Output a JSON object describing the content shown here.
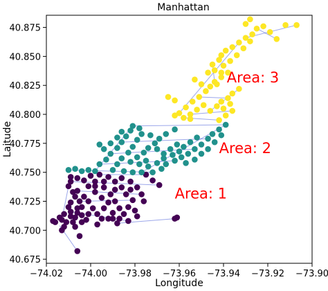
{
  "chart_data": {
    "type": "scatter",
    "title": "Manhattan",
    "xlabel": "Longitude",
    "ylabel": "Laitude",
    "xlim": [
      -74.02,
      -73.9
    ],
    "ylim": [
      40.6715,
      40.8855
    ],
    "x_ticks": [
      -74.02,
      -74.0,
      -73.98,
      -73.96,
      -73.94,
      -73.92,
      -73.9
    ],
    "x_tick_labels": [
      "−74.02",
      "−74.00",
      "−73.98",
      "−73.96",
      "−73.94",
      "−73.92",
      "−73.90"
    ],
    "y_ticks": [
      40.675,
      40.7,
      40.725,
      40.75,
      40.775,
      40.8,
      40.825,
      40.85,
      40.875
    ],
    "y_tick_labels": [
      "40.675",
      "40.700",
      "40.725",
      "40.750",
      "40.775",
      "40.800",
      "40.825",
      "40.850",
      "40.875"
    ],
    "grid": false,
    "edge_color": "#4a5fd8",
    "clusters": [
      {
        "label": "Area: 1",
        "color": "#440154",
        "label_x": -73.962,
        "label_y": 40.7275,
        "points": [
          [
            -74.013,
            40.709
          ],
          [
            -74.011,
            40.707
          ],
          [
            -74.016,
            40.707
          ],
          [
            -74.012,
            40.703
          ],
          [
            -74.008,
            40.707
          ],
          [
            -74.007,
            40.703
          ],
          [
            -74.009,
            40.712
          ],
          [
            -74.012,
            40.714
          ],
          [
            -74.009,
            40.716
          ],
          [
            -74.007,
            40.711
          ],
          [
            -74.004,
            40.707
          ],
          [
            -74.006,
            40.715
          ],
          [
            -74.01,
            40.72
          ],
          [
            -74.009,
            40.724
          ],
          [
            -74.006,
            40.719
          ],
          [
            -74.004,
            40.713
          ],
          [
            -74.002,
            40.709
          ],
          [
            -74.001,
            40.714
          ],
          [
            -74.004,
            40.72
          ],
          [
            -74.005,
            40.725
          ],
          [
            -74.007,
            40.729
          ],
          [
            -74.008,
            40.733
          ],
          [
            -74.01,
            40.738
          ],
          [
            -74.009,
            40.742
          ],
          [
            -74.006,
            40.734
          ],
          [
            -74.003,
            40.729
          ],
          [
            -74.001,
            40.725
          ],
          [
            -73.999,
            40.719
          ],
          [
            -73.997,
            40.714
          ],
          [
            -73.995,
            40.71
          ],
          [
            -73.997,
            40.705
          ],
          [
            -73.994,
            40.719
          ],
          [
            -73.992,
            40.724
          ],
          [
            -73.995,
            40.728
          ],
          [
            -73.998,
            40.733
          ],
          [
            -74.001,
            40.738
          ],
          [
            -74.003,
            40.743
          ],
          [
            -73.998,
            40.742
          ],
          [
            -73.994,
            40.737
          ],
          [
            -73.991,
            40.731
          ],
          [
            -73.989,
            40.725
          ],
          [
            -73.987,
            40.719
          ],
          [
            -73.985,
            40.714
          ],
          [
            -73.983,
            40.72
          ],
          [
            -73.981,
            40.726
          ],
          [
            -73.984,
            40.731
          ],
          [
            -73.986,
            40.737
          ],
          [
            -73.989,
            40.742
          ],
          [
            -73.992,
            40.746
          ],
          [
            -73.996,
            40.748
          ],
          [
            -74.0,
            40.747
          ],
          [
            -74.006,
            40.745
          ],
          [
            -74.009,
            40.746
          ],
          [
            -73.986,
            40.745
          ],
          [
            -73.982,
            40.742
          ],
          [
            -73.979,
            40.737
          ],
          [
            -73.977,
            40.731
          ],
          [
            -73.976,
            40.725
          ],
          [
            -73.98,
            40.717
          ],
          [
            -73.979,
            40.712
          ],
          [
            -73.983,
            40.708
          ],
          [
            -73.988,
            40.706
          ],
          [
            -73.992,
            40.71
          ],
          [
            -73.99,
            40.715
          ],
          [
            -73.975,
            40.748
          ],
          [
            -73.972,
            40.743
          ],
          [
            -73.969,
            40.739
          ],
          [
            -73.987,
            40.71
          ],
          [
            -74.005,
            40.695
          ],
          [
            -74.013,
            40.7
          ],
          [
            -74.006,
            40.682
          ],
          [
            -73.99,
            40.71
          ],
          [
            -73.961,
            40.711
          ],
          [
            -73.962,
            40.71
          ],
          [
            -74.017,
            40.708
          ],
          [
            -74.014,
            40.711
          ],
          [
            -73.998,
            40.738
          ],
          [
            -73.994,
            40.742
          ],
          [
            -73.989,
            40.735
          ],
          [
            -73.982,
            40.735
          ]
        ],
        "edges": [
          [
            [
              -74.014,
              40.704
            ],
            [
              -74.006,
              40.682
            ]
          ],
          [
            [
              -73.988,
              40.706
            ],
            [
              -73.962,
              40.71
            ]
          ],
          [
            [
              -74.009,
              40.742
            ],
            [
              -73.969,
              40.739
            ]
          ],
          [
            [
              -74.006,
              40.734
            ],
            [
              -73.977,
              40.731
            ]
          ],
          [
            [
              -74.005,
              40.725
            ],
            [
              -73.981,
              40.726
            ]
          ],
          [
            [
              -74.009,
              40.716
            ],
            [
              -73.983,
              40.708
            ]
          ],
          [
            [
              -74.01,
              40.738
            ],
            [
              -74.013,
              40.709
            ]
          ],
          [
            [
              -73.996,
              40.748
            ],
            [
              -73.975,
              40.748
            ]
          ]
        ]
      },
      {
        "label": "Area: 2",
        "color": "#21918c",
        "label_x": -73.942,
        "label_y": 40.7665,
        "points": [
          [
            -74.01,
            40.752
          ],
          [
            -74.007,
            40.753
          ],
          [
            -74.004,
            40.751
          ],
          [
            -74.001,
            40.752
          ],
          [
            -73.998,
            40.751
          ],
          [
            -73.996,
            40.757
          ],
          [
            -73.993,
            40.761
          ],
          [
            -73.991,
            40.766
          ],
          [
            -73.988,
            40.771
          ],
          [
            -73.986,
            40.776
          ],
          [
            -73.984,
            40.781
          ],
          [
            -73.982,
            40.786
          ],
          [
            -73.981,
            40.79
          ],
          [
            -73.978,
            40.788
          ],
          [
            -73.977,
            40.783
          ],
          [
            -73.979,
            40.778
          ],
          [
            -73.981,
            40.772
          ],
          [
            -73.983,
            40.767
          ],
          [
            -73.986,
            40.762
          ],
          [
            -73.988,
            40.757
          ],
          [
            -73.99,
            40.752
          ],
          [
            -73.985,
            40.751
          ],
          [
            -73.981,
            40.75
          ],
          [
            -73.977,
            40.75
          ],
          [
            -73.972,
            40.75
          ],
          [
            -73.968,
            40.753
          ],
          [
            -73.966,
            40.757
          ],
          [
            -73.962,
            40.76
          ],
          [
            -73.959,
            40.763
          ],
          [
            -73.956,
            40.766
          ],
          [
            -73.953,
            40.77
          ],
          [
            -73.95,
            40.774
          ],
          [
            -73.947,
            40.779
          ],
          [
            -73.945,
            40.783
          ],
          [
            -73.942,
            40.787
          ],
          [
            -73.939,
            40.791
          ],
          [
            -73.958,
            40.772
          ],
          [
            -73.955,
            40.776
          ],
          [
            -73.952,
            40.78
          ],
          [
            -73.96,
            40.768
          ],
          [
            -73.963,
            40.765
          ],
          [
            -73.967,
            40.762
          ],
          [
            -73.97,
            40.758
          ],
          [
            -73.974,
            40.755
          ],
          [
            -73.978,
            40.757
          ],
          [
            -73.982,
            40.759
          ],
          [
            -73.979,
            40.763
          ],
          [
            -73.976,
            40.767
          ],
          [
            -73.974,
            40.771
          ],
          [
            -73.971,
            40.775
          ],
          [
            -73.969,
            40.779
          ],
          [
            -73.966,
            40.783
          ],
          [
            -73.962,
            40.787
          ],
          [
            -73.973,
            40.782
          ],
          [
            -73.97,
            40.77
          ],
          [
            -73.967,
            40.766
          ],
          [
            -73.964,
            40.77
          ],
          [
            -73.961,
            40.774
          ],
          [
            -73.975,
            40.76
          ],
          [
            -73.957,
            40.758
          ],
          [
            -73.953,
            40.761
          ],
          [
            -73.95,
            40.766
          ],
          [
            -73.947,
            40.77
          ],
          [
            -73.944,
            40.776
          ],
          [
            -73.941,
            40.782
          ],
          [
            -73.994,
            40.77
          ],
          [
            -73.996,
            40.774
          ],
          [
            -73.991,
            40.775
          ],
          [
            -73.988,
            40.78
          ],
          [
            -73.986,
            40.785
          ]
        ],
        "edges": [
          [
            [
              -74.01,
              40.752
            ],
            [
              -73.972,
              40.75
            ]
          ],
          [
            [
              -73.996,
              40.757
            ],
            [
              -73.962,
              40.76
            ]
          ],
          [
            [
              -73.991,
              40.766
            ],
            [
              -73.953,
              40.77
            ]
          ],
          [
            [
              -73.986,
              40.776
            ],
            [
              -73.947,
              40.779
            ]
          ],
          [
            [
              -73.981,
              40.79
            ],
            [
              -73.939,
              40.791
            ]
          ],
          [
            [
              -73.998,
              40.751
            ],
            [
              -73.981,
              40.79
            ]
          ],
          [
            [
              -73.977,
              40.75
            ],
            [
              -73.939,
              40.791
            ]
          ]
        ]
      },
      {
        "label": "Area: 3",
        "color": "#fde725",
        "label_x": -73.9385,
        "label_y": 40.8275,
        "points": [
          [
            -73.96,
            40.801
          ],
          [
            -73.957,
            40.806
          ],
          [
            -73.954,
            40.811
          ],
          [
            -73.951,
            40.815
          ],
          [
            -73.948,
            40.82
          ],
          [
            -73.946,
            40.824
          ],
          [
            -73.944,
            40.828
          ],
          [
            -73.941,
            40.832
          ],
          [
            -73.938,
            40.836
          ],
          [
            -73.946,
            40.803
          ],
          [
            -73.943,
            40.807
          ],
          [
            -73.941,
            40.811
          ],
          [
            -73.938,
            40.814
          ],
          [
            -73.936,
            40.818
          ],
          [
            -73.933,
            40.822
          ],
          [
            -73.936,
            40.803
          ],
          [
            -73.939,
            40.799
          ],
          [
            -73.942,
            40.795
          ],
          [
            -73.94,
            40.805
          ],
          [
            -73.937,
            40.809
          ],
          [
            -73.952,
            40.804
          ],
          [
            -73.949,
            40.808
          ],
          [
            -73.955,
            40.8
          ],
          [
            -73.962,
            40.812
          ],
          [
            -73.965,
            40.815
          ],
          [
            -73.958,
            40.797
          ],
          [
            -73.955,
            40.796
          ],
          [
            -73.962,
            40.799
          ],
          [
            -73.945,
            40.843
          ],
          [
            -73.942,
            40.847
          ],
          [
            -73.941,
            40.851
          ],
          [
            -73.94,
            40.842
          ],
          [
            -73.937,
            40.846
          ],
          [
            -73.939,
            40.855
          ],
          [
            -73.936,
            40.858
          ],
          [
            -73.933,
            40.862
          ],
          [
            -73.93,
            40.866
          ],
          [
            -73.927,
            40.869
          ],
          [
            -73.925,
            40.874
          ],
          [
            -73.922,
            40.876
          ],
          [
            -73.919,
            40.871
          ],
          [
            -73.916,
            40.865
          ],
          [
            -73.928,
            40.863
          ],
          [
            -73.931,
            40.857
          ],
          [
            -73.934,
            40.851
          ],
          [
            -73.95,
            40.826
          ],
          [
            -73.953,
            40.83
          ],
          [
            -73.947,
            40.836
          ],
          [
            -73.944,
            40.838
          ],
          [
            -73.941,
            40.836
          ],
          [
            -73.907,
            40.877
          ],
          [
            -73.912,
            40.877
          ],
          [
            -73.928,
            40.882
          ],
          [
            -73.93,
            40.878
          ],
          [
            -73.943,
            40.826
          ]
        ],
        "edges": [
          [
            [
              -73.96,
              40.801
            ],
            [
              -73.933,
              40.862
            ]
          ],
          [
            [
              -73.93,
              40.866
            ],
            [
              -73.907,
              40.877
            ]
          ],
          [
            [
              -73.925,
              40.874
            ],
            [
              -73.916,
              40.865
            ]
          ],
          [
            [
              -73.944,
              40.828
            ],
            [
              -73.945,
              40.843
            ]
          ],
          [
            [
              -73.946,
              40.803
            ],
            [
              -73.933,
              40.822
            ]
          ],
          [
            [
              -73.955,
              40.8
            ],
            [
              -73.936,
              40.803
            ]
          ],
          [
            [
              -73.942,
              40.795
            ],
            [
              -73.958,
              40.797
            ]
          ],
          [
            [
              -73.951,
              40.815
            ],
            [
              -73.938,
              40.814
            ]
          ]
        ]
      }
    ]
  }
}
